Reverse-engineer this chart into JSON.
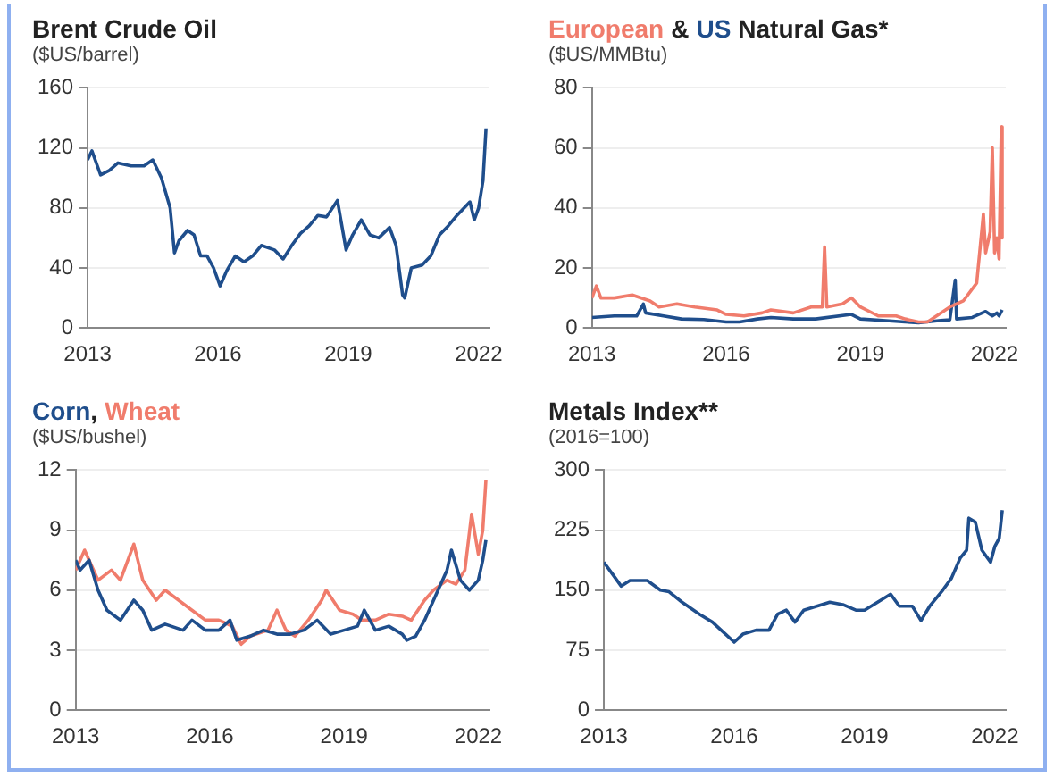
{
  "chart_data": [
    {
      "type": "line",
      "title": "Brent Crude Oil",
      "subtitle": "($US/barrel)",
      "xlim": [
        2013,
        2022.25
      ],
      "xticks": [
        2013,
        2016,
        2019,
        2022
      ],
      "ylim": [
        0,
        160
      ],
      "yticks": [
        0,
        40,
        80,
        120,
        160
      ],
      "grid": "y",
      "series": [
        {
          "color": "#1f4e8c",
          "x": [
            2013,
            2013.1,
            2013.3,
            2013.5,
            2013.7,
            2014,
            2014.3,
            2014.5,
            2014.7,
            2014.9,
            2015,
            2015.1,
            2015.3,
            2015.45,
            2015.6,
            2015.75,
            2015.9,
            2016.05,
            2016.2,
            2016.4,
            2016.6,
            2016.8,
            2017,
            2017.3,
            2017.5,
            2017.7,
            2017.9,
            2018.1,
            2018.3,
            2018.5,
            2018.75,
            2018.95,
            2019.1,
            2019.3,
            2019.5,
            2019.7,
            2019.95,
            2020.1,
            2020.25,
            2020.3,
            2020.45,
            2020.7,
            2020.9,
            2021.1,
            2021.3,
            2021.5,
            2021.8,
            2021.9,
            2022,
            2022.1,
            2022.17
          ],
          "values": [
            112,
            118,
            102,
            105,
            110,
            108,
            108,
            112,
            100,
            80,
            50,
            58,
            65,
            62,
            48,
            48,
            40,
            28,
            38,
            48,
            44,
            48,
            55,
            52,
            46,
            55,
            63,
            68,
            75,
            74,
            85,
            52,
            62,
            72,
            62,
            60,
            67,
            55,
            22,
            20,
            40,
            42,
            48,
            62,
            68,
            75,
            84,
            72,
            80,
            98,
            133
          ]
        }
      ]
    },
    {
      "type": "line",
      "title": "Natural Gas*",
      "annotations": [
        "&"
      ],
      "subtitle": "($US/MMBtu)",
      "xlim": [
        2013,
        2022.25
      ],
      "xticks": [
        2013,
        2016,
        2019,
        2022
      ],
      "ylim": [
        0,
        80
      ],
      "yticks": [
        0,
        20,
        40,
        60,
        80
      ],
      "grid": "y",
      "series": [
        {
          "name": "European",
          "color": "#f07c6c",
          "x": [
            2013,
            2013.1,
            2013.2,
            2013.5,
            2013.9,
            2014.3,
            2014.5,
            2014.9,
            2015.3,
            2015.8,
            2016,
            2016.4,
            2016.8,
            2017,
            2017.5,
            2017.9,
            2018.15,
            2018.2,
            2018.25,
            2018.6,
            2018.8,
            2019,
            2019.4,
            2019.8,
            2020,
            2020.3,
            2020.5,
            2020.8,
            2021,
            2021.3,
            2021.6,
            2021.75,
            2021.8,
            2021.9,
            2021.95,
            2022,
            2022.05,
            2022.1,
            2022.15,
            2022.17
          ],
          "values": [
            10,
            14,
            10,
            10,
            11,
            9,
            7,
            8,
            7,
            6,
            4.5,
            4,
            5,
            6,
            5,
            7,
            7,
            27,
            7,
            8,
            10,
            7,
            4,
            4,
            3,
            2,
            2,
            5,
            7,
            9,
            15,
            38,
            25,
            32,
            60,
            25,
            30,
            23,
            67,
            30
          ]
        },
        {
          "name": "US",
          "color": "#1f4e8c",
          "x": [
            2013,
            2013.5,
            2014,
            2014.15,
            2014.2,
            2014.6,
            2015,
            2015.5,
            2016,
            2016.3,
            2016.7,
            2017,
            2017.5,
            2018,
            2018.8,
            2019,
            2019.5,
            2020,
            2020.3,
            2020.8,
            2021,
            2021.12,
            2021.15,
            2021.5,
            2021.8,
            2021.95,
            2022.05,
            2022.1,
            2022.17
          ],
          "values": [
            3.5,
            4,
            4,
            8,
            5,
            4,
            3,
            2.8,
            2,
            2,
            3,
            3.5,
            3,
            3,
            4.5,
            3,
            2.5,
            2,
            1.7,
            2.5,
            2.7,
            16,
            3,
            3.5,
            5.5,
            4,
            5,
            4,
            6
          ]
        }
      ]
    },
    {
      "type": "line",
      "annotations": [
        ","
      ],
      "subtitle": "($US/bushel)",
      "xlim": [
        2013,
        2022.25
      ],
      "xticks": [
        2013,
        2016,
        2019,
        2022
      ],
      "ylim": [
        0,
        12
      ],
      "yticks": [
        0,
        3,
        6,
        9,
        12
      ],
      "grid": "y",
      "series": [
        {
          "name": "Corn",
          "color": "#1f4e8c",
          "x": [
            2013,
            2013.1,
            2013.3,
            2013.5,
            2013.7,
            2014,
            2014.3,
            2014.5,
            2014.7,
            2015,
            2015.4,
            2015.6,
            2015.9,
            2016.2,
            2016.45,
            2016.6,
            2016.9,
            2017.2,
            2017.5,
            2017.8,
            2018.1,
            2018.4,
            2018.7,
            2019,
            2019.3,
            2019.45,
            2019.7,
            2020,
            2020.3,
            2020.4,
            2020.6,
            2020.8,
            2021,
            2021.3,
            2021.4,
            2021.6,
            2021.8,
            2022,
            2022.1,
            2022.17
          ],
          "values": [
            7.5,
            7,
            7.5,
            6,
            5,
            4.5,
            5.5,
            5,
            4,
            4.3,
            4,
            4.5,
            4,
            4,
            4.5,
            3.5,
            3.7,
            4,
            3.8,
            3.8,
            4,
            4.5,
            3.8,
            4,
            4.2,
            5,
            4,
            4.2,
            3.8,
            3.5,
            3.7,
            4.5,
            5.5,
            7,
            8,
            6.5,
            6,
            6.5,
            7.5,
            8.5
          ]
        },
        {
          "name": "Wheat",
          "color": "#f07c6c",
          "x": [
            2013,
            2013.2,
            2013.5,
            2013.8,
            2014,
            2014.3,
            2014.5,
            2014.8,
            2015,
            2015.3,
            2015.6,
            2015.9,
            2016.2,
            2016.5,
            2016.7,
            2016.9,
            2017.3,
            2017.5,
            2017.7,
            2017.9,
            2018.2,
            2018.5,
            2018.6,
            2018.9,
            2019.2,
            2019.4,
            2019.7,
            2020,
            2020.3,
            2020.5,
            2020.8,
            2021,
            2021.3,
            2021.5,
            2021.7,
            2021.85,
            2022,
            2022.1,
            2022.17
          ],
          "values": [
            7,
            8,
            6.5,
            7,
            6.5,
            8.3,
            6.5,
            5.5,
            6,
            5.5,
            5,
            4.5,
            4.5,
            4.2,
            3.3,
            3.7,
            4,
            5,
            4,
            3.7,
            4.5,
            5.5,
            6,
            5,
            4.8,
            4.5,
            4.5,
            4.8,
            4.7,
            4.5,
            5.5,
            6,
            6.5,
            6.3,
            7,
            9.8,
            7.8,
            9,
            11.5
          ]
        }
      ]
    },
    {
      "type": "line",
      "title": "Metals Index**",
      "subtitle": "(2016=100)",
      "xlim": [
        2013,
        2022.25
      ],
      "xticks": [
        2013,
        2016,
        2019,
        2022
      ],
      "ylim": [
        0,
        300
      ],
      "yticks": [
        0,
        75,
        150,
        225,
        300
      ],
      "grid": "y",
      "series": [
        {
          "color": "#1f4e8c",
          "x": [
            2013,
            2013.2,
            2013.4,
            2013.6,
            2014,
            2014.3,
            2014.5,
            2014.8,
            2015.2,
            2015.5,
            2015.7,
            2016,
            2016.2,
            2016.5,
            2016.8,
            2017,
            2017.2,
            2017.4,
            2017.6,
            2017.9,
            2018.2,
            2018.5,
            2018.8,
            2019,
            2019.3,
            2019.6,
            2019.8,
            2020.1,
            2020.3,
            2020.5,
            2020.8,
            2021,
            2021.2,
            2021.35,
            2021.4,
            2021.55,
            2021.7,
            2021.9,
            2022,
            2022.1,
            2022.17
          ],
          "values": [
            185,
            170,
            155,
            162,
            162,
            150,
            148,
            135,
            120,
            110,
            100,
            85,
            95,
            100,
            100,
            120,
            125,
            110,
            125,
            130,
            135,
            132,
            125,
            125,
            135,
            145,
            130,
            130,
            112,
            130,
            150,
            165,
            190,
            200,
            240,
            235,
            200,
            185,
            205,
            215,
            250
          ]
        }
      ]
    }
  ]
}
